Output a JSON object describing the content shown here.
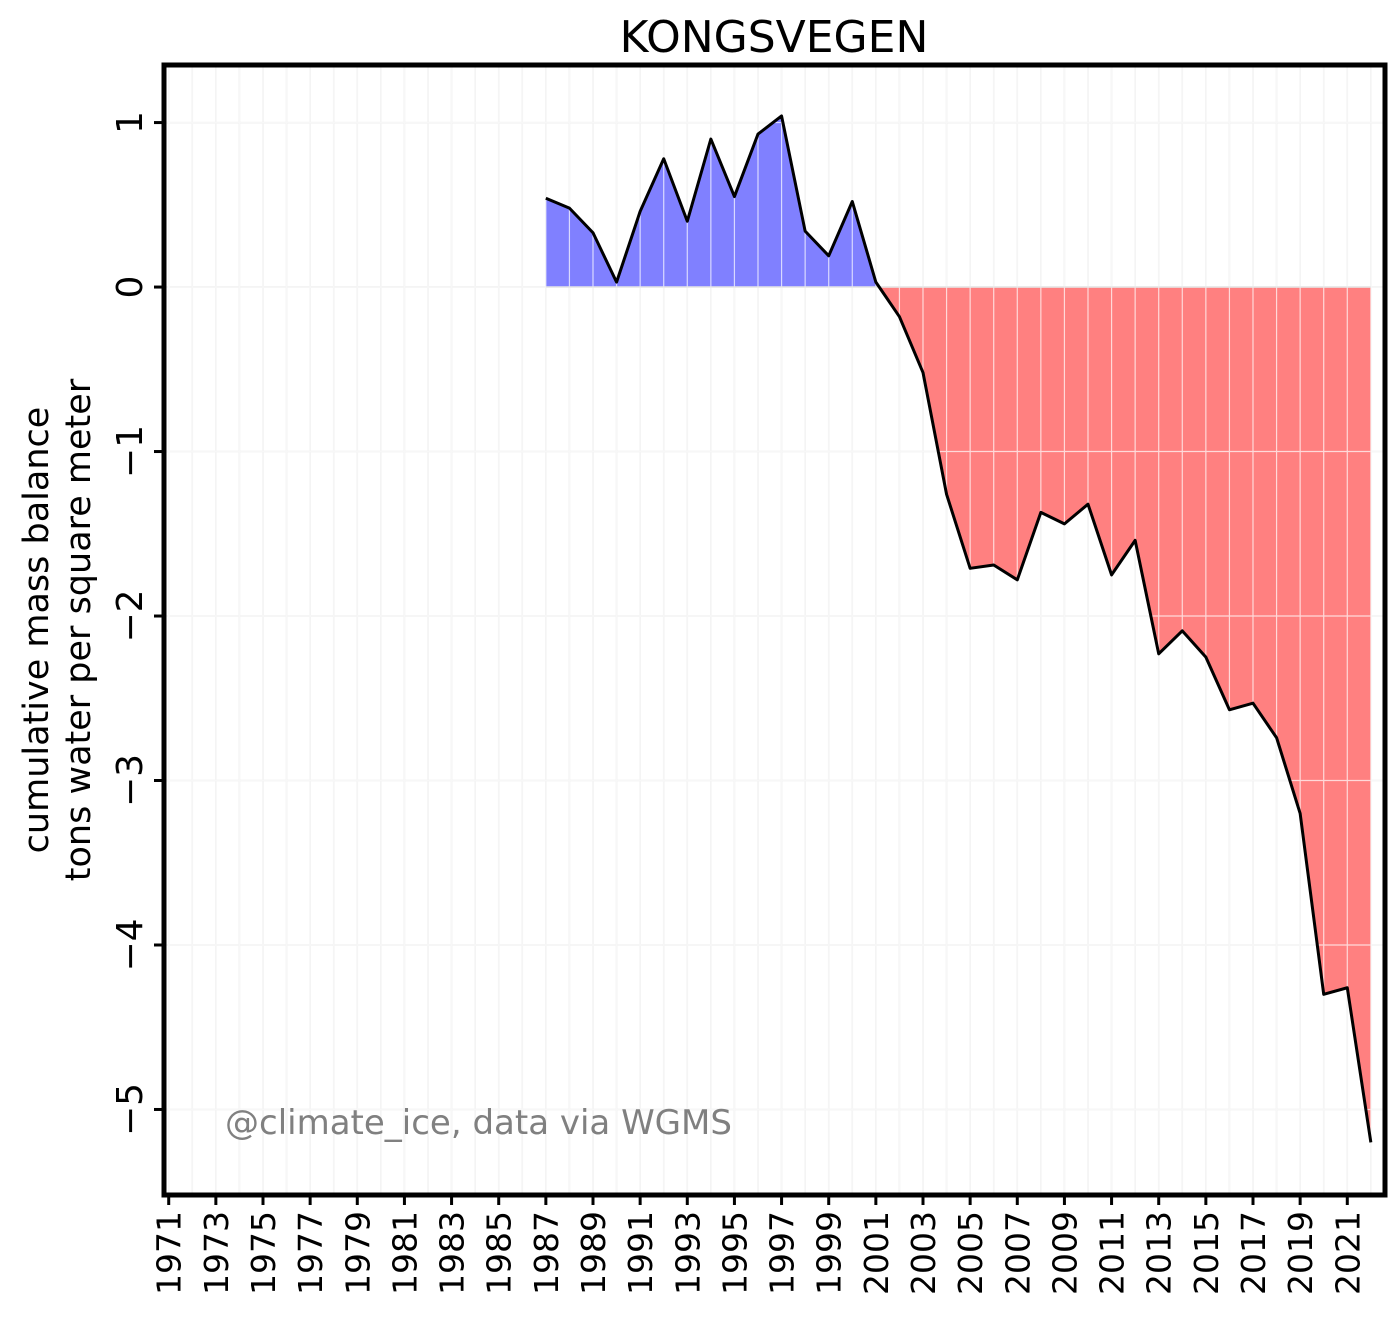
{
  "chart_data": {
    "type": "area",
    "title": "KONGSVEGEN",
    "ylabel": [
      "cumulative mass balance",
      "tons water per square meter"
    ],
    "xlabel": "",
    "credit": "@climate_ice, data via WGMS",
    "xlim": [
      1970.8,
      2022.6
    ],
    "ylim": [
      -5.52,
      1.35
    ],
    "yticks": [
      1,
      0,
      -1,
      -2,
      -3,
      -4,
      -5
    ],
    "ytick_labels": [
      "1",
      "0",
      "−1",
      "−2",
      "−3",
      "−4",
      "−5"
    ],
    "xticks": [
      1971,
      1973,
      1975,
      1977,
      1979,
      1981,
      1983,
      1985,
      1987,
      1989,
      1991,
      1993,
      1995,
      1997,
      1999,
      2001,
      2003,
      2005,
      2007,
      2009,
      2011,
      2013,
      2015,
      2017,
      2019,
      2021
    ],
    "grid": true,
    "colors": {
      "positive": "#8080ff",
      "negative": "#ff8080",
      "line": "#000000",
      "grid": "#e6e6e6"
    },
    "series": [
      {
        "x": [
          1987,
          1988,
          1989,
          1990,
          1991,
          1992,
          1993,
          1994,
          1995,
          1996,
          1997,
          1998,
          1999,
          2000,
          2001,
          2002,
          2003,
          2004,
          2005,
          2006,
          2007,
          2008,
          2009,
          2010,
          2011,
          2012,
          2013,
          2014,
          2015,
          2016,
          2017,
          2018,
          2019,
          2020,
          2021,
          2022
        ],
        "y": [
          0.54,
          0.48,
          0.33,
          0.03,
          0.46,
          0.78,
          0.4,
          0.9,
          0.55,
          0.93,
          1.04,
          0.34,
          0.19,
          0.52,
          0.03,
          -0.18,
          -0.52,
          -1.26,
          -1.71,
          -1.69,
          -1.78,
          -1.37,
          -1.44,
          -1.32,
          -1.75,
          -1.54,
          -2.23,
          -2.09,
          -2.25,
          -2.57,
          -2.53,
          -2.74,
          -3.2,
          -4.3,
          -4.26,
          -5.2
        ]
      }
    ]
  }
}
